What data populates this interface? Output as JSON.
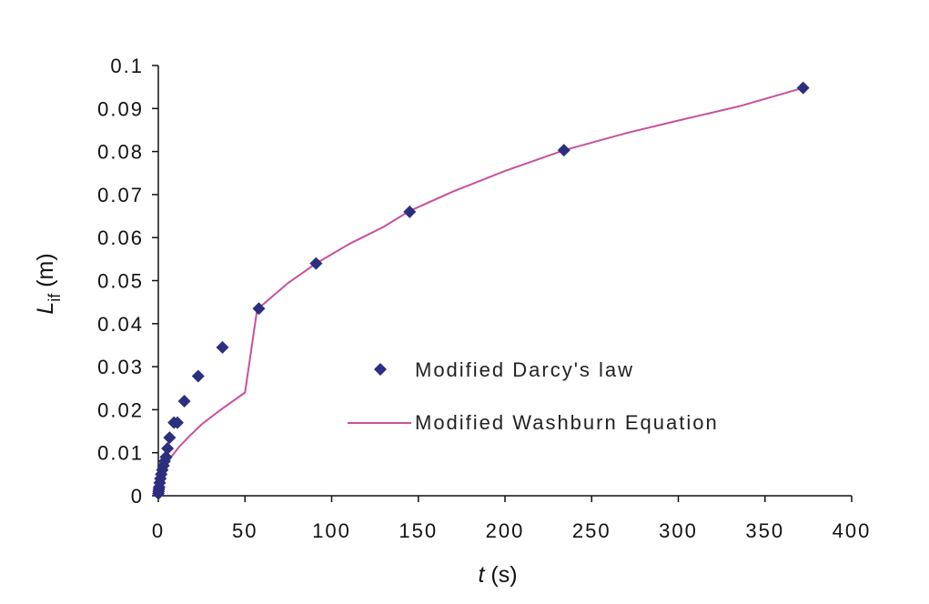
{
  "chart_data": {
    "type": "scatter",
    "xlabel": {
      "italic": "t",
      "rest": " (s)"
    },
    "ylabel": {
      "main": "L",
      "subscript": "if",
      "rest": " (m)"
    },
    "xlim": [
      0,
      400
    ],
    "ylim": [
      0,
      0.1
    ],
    "x_ticks": [
      "0",
      "50",
      "100",
      "150",
      "200",
      "250",
      "300",
      "350",
      "400"
    ],
    "y_ticks": [
      "0",
      "0.01",
      "0.02",
      "0.03",
      "0.04",
      "0.05",
      "0.06",
      "0.07",
      "0.08",
      "0.09",
      "0.1"
    ],
    "x_tick_values": [
      0,
      50,
      100,
      150,
      200,
      250,
      300,
      350,
      400
    ],
    "y_tick_values": [
      0,
      0.01,
      0.02,
      0.03,
      0.04,
      0.05,
      0.06,
      0.07,
      0.08,
      0.09,
      0.1
    ],
    "grid": false,
    "legend_position": "center-right",
    "series": [
      {
        "name": "Modified Darcy's law",
        "kind": "markers",
        "marker": "diamond",
        "color": "#2b2f7e",
        "points": [
          [
            0.05,
            0.0005
          ],
          [
            0.15,
            0.001
          ],
          [
            0.3,
            0.0015
          ],
          [
            0.5,
            0.002
          ],
          [
            0.8,
            0.003
          ],
          [
            1.2,
            0.004
          ],
          [
            1.7,
            0.005
          ],
          [
            2.3,
            0.006
          ],
          [
            3.0,
            0.007
          ],
          [
            3.6,
            0.008
          ],
          [
            4.4,
            0.009
          ],
          [
            5.3,
            0.011
          ],
          [
            6.5,
            0.0135
          ],
          [
            9,
            0.017
          ],
          [
            11,
            0.017
          ],
          [
            15,
            0.022
          ],
          [
            23,
            0.0278
          ],
          [
            37,
            0.0345
          ],
          [
            58,
            0.0435
          ],
          [
            91,
            0.054
          ],
          [
            145,
            0.066
          ],
          [
            234,
            0.0803
          ],
          [
            372,
            0.0948
          ]
        ]
      },
      {
        "name": "Modified Washburn Equation",
        "kind": "line",
        "color": "#c8509a",
        "points": [
          [
            0,
            0
          ],
          [
            0.5,
            0.0023
          ],
          [
            1,
            0.0033
          ],
          [
            2,
            0.0047
          ],
          [
            3,
            0.0058
          ],
          [
            5,
            0.0074
          ],
          [
            8,
            0.0093
          ],
          [
            12,
            0.0114
          ],
          [
            18,
            0.0139
          ],
          [
            25,
            0.0166
          ],
          [
            35,
            0.0197
          ],
          [
            50,
            0.024
          ],
          [
            57,
            0.0433
          ],
          [
            75,
            0.0495
          ],
          [
            91,
            0.054
          ],
          [
            110,
            0.0585
          ],
          [
            130,
            0.0625
          ],
          [
            145,
            0.0662
          ],
          [
            170,
            0.0707
          ],
          [
            200,
            0.0755
          ],
          [
            234,
            0.0803
          ],
          [
            270,
            0.0843
          ],
          [
            300,
            0.0872
          ],
          [
            335,
            0.0905
          ],
          [
            372,
            0.0948
          ]
        ]
      }
    ]
  },
  "legend": {
    "items": [
      {
        "label": "Modified Darcy's law"
      },
      {
        "label": "Modified Washburn Equation"
      }
    ]
  }
}
